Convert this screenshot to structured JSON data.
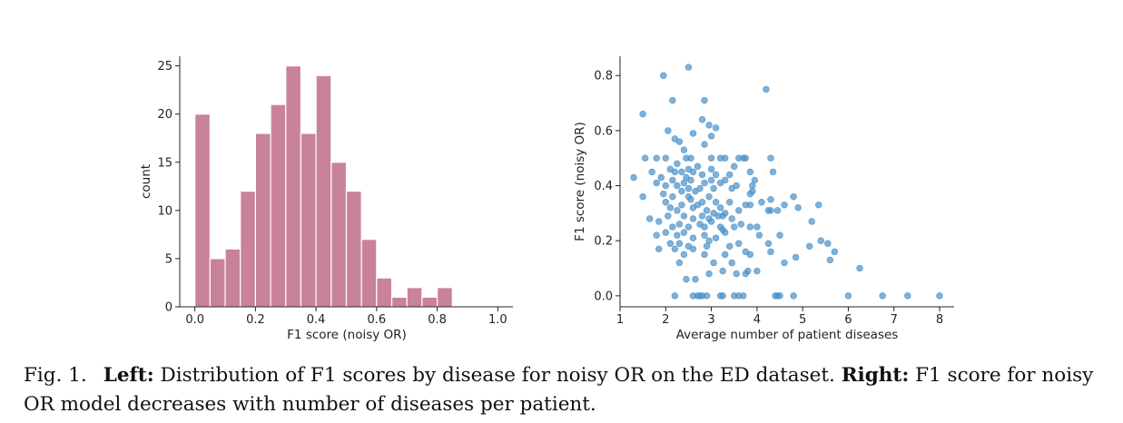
{
  "chart_data": [
    {
      "type": "bar",
      "chart_kind": "histogram",
      "xlabel": "F1 score (noisy OR)",
      "ylabel": "count",
      "xlim": [
        -0.05,
        1.05
      ],
      "ylim": [
        0,
        26
      ],
      "xticks": [
        "0.0",
        "0.2",
        "0.4",
        "0.6",
        "0.8",
        "1.0"
      ],
      "yticks": [
        "0",
        "5",
        "10",
        "15",
        "20",
        "25"
      ],
      "bin_edges": [
        0.0,
        0.05,
        0.1,
        0.15,
        0.2,
        0.25,
        0.3,
        0.35,
        0.4,
        0.45,
        0.5,
        0.55,
        0.6,
        0.65,
        0.7,
        0.75,
        0.8,
        0.85
      ],
      "values": [
        20,
        5,
        6,
        12,
        18,
        21,
        25,
        18,
        24,
        15,
        12,
        7,
        3,
        1,
        2,
        1,
        2
      ],
      "color": "#c8829a",
      "edge_color": "#ffffff",
      "grid": false
    },
    {
      "type": "scatter",
      "xlabel": "Average number of patient diseases",
      "ylabel": "F1 score (noisy OR)",
      "xlim": [
        1,
        8
      ],
      "ylim": [
        -0.04,
        0.87
      ],
      "xticks": [
        "1",
        "2",
        "3",
        "4",
        "5",
        "6",
        "7",
        "8"
      ],
      "yticks": [
        "0.0",
        "0.2",
        "0.4",
        "0.6",
        "0.8"
      ],
      "color": "#4a90c8",
      "grid": false,
      "points": [
        [
          2.5,
          0.83
        ],
        [
          1.95,
          0.8
        ],
        [
          4.2,
          0.75
        ],
        [
          2.15,
          0.71
        ],
        [
          2.85,
          0.71
        ],
        [
          1.5,
          0.66
        ],
        [
          2.8,
          0.64
        ],
        [
          2.95,
          0.62
        ],
        [
          3.1,
          0.61
        ],
        [
          2.05,
          0.6
        ],
        [
          2.6,
          0.59
        ],
        [
          3.0,
          0.58
        ],
        [
          2.2,
          0.57
        ],
        [
          2.3,
          0.56
        ],
        [
          2.85,
          0.55
        ],
        [
          2.4,
          0.53
        ],
        [
          1.8,
          0.5
        ],
        [
          2.0,
          0.5
        ],
        [
          2.45,
          0.5
        ],
        [
          2.55,
          0.5
        ],
        [
          3.0,
          0.5
        ],
        [
          3.2,
          0.5
        ],
        [
          3.3,
          0.5
        ],
        [
          3.6,
          0.5
        ],
        [
          3.75,
          0.5
        ],
        [
          3.7,
          0.5
        ],
        [
          4.3,
          0.5
        ],
        [
          1.55,
          0.5
        ],
        [
          2.25,
          0.48
        ],
        [
          2.7,
          0.47
        ],
        [
          3.5,
          0.47
        ],
        [
          2.1,
          0.46
        ],
        [
          2.5,
          0.46
        ],
        [
          3.0,
          0.46
        ],
        [
          1.7,
          0.45
        ],
        [
          2.2,
          0.45
        ],
        [
          2.35,
          0.45
        ],
        [
          2.6,
          0.45
        ],
        [
          3.85,
          0.45
        ],
        [
          4.35,
          0.45
        ],
        [
          2.8,
          0.44
        ],
        [
          3.1,
          0.44
        ],
        [
          3.4,
          0.44
        ],
        [
          1.9,
          0.43
        ],
        [
          2.45,
          0.43
        ],
        [
          1.3,
          0.43
        ],
        [
          2.15,
          0.42
        ],
        [
          2.55,
          0.42
        ],
        [
          3.0,
          0.42
        ],
        [
          3.3,
          0.42
        ],
        [
          3.95,
          0.42
        ],
        [
          1.8,
          0.41
        ],
        [
          2.4,
          0.41
        ],
        [
          2.85,
          0.41
        ],
        [
          3.2,
          0.41
        ],
        [
          2.0,
          0.4
        ],
        [
          2.25,
          0.4
        ],
        [
          3.55,
          0.4
        ],
        [
          3.9,
          0.4
        ],
        [
          2.5,
          0.39
        ],
        [
          2.75,
          0.39
        ],
        [
          3.05,
          0.39
        ],
        [
          3.45,
          0.39
        ],
        [
          3.9,
          0.38
        ],
        [
          2.35,
          0.38
        ],
        [
          2.65,
          0.38
        ],
        [
          1.95,
          0.37
        ],
        [
          3.85,
          0.37
        ],
        [
          2.15,
          0.36
        ],
        [
          2.5,
          0.36
        ],
        [
          2.95,
          0.36
        ],
        [
          1.5,
          0.36
        ],
        [
          4.8,
          0.36
        ],
        [
          2.55,
          0.35
        ],
        [
          4.3,
          0.35
        ],
        [
          2.0,
          0.34
        ],
        [
          2.8,
          0.34
        ],
        [
          3.1,
          0.34
        ],
        [
          3.4,
          0.34
        ],
        [
          4.1,
          0.34
        ],
        [
          2.35,
          0.33
        ],
        [
          2.7,
          0.33
        ],
        [
          3.75,
          0.33
        ],
        [
          3.85,
          0.33
        ],
        [
          4.6,
          0.33
        ],
        [
          5.35,
          0.33
        ],
        [
          2.1,
          0.32
        ],
        [
          2.6,
          0.32
        ],
        [
          3.2,
          0.32
        ],
        [
          4.9,
          0.32
        ],
        [
          3.6,
          0.31
        ],
        [
          2.25,
          0.31
        ],
        [
          2.9,
          0.31
        ],
        [
          4.25,
          0.31
        ],
        [
          4.45,
          0.31
        ],
        [
          4.3,
          0.31
        ],
        [
          3.05,
          0.3
        ],
        [
          3.3,
          0.3
        ],
        [
          2.4,
          0.29
        ],
        [
          2.8,
          0.29
        ],
        [
          3.15,
          0.29
        ],
        [
          2.05,
          0.29
        ],
        [
          3.25,
          0.29
        ],
        [
          2.6,
          0.28
        ],
        [
          2.95,
          0.28
        ],
        [
          1.65,
          0.28
        ],
        [
          3.45,
          0.28
        ],
        [
          5.2,
          0.27
        ],
        [
          1.85,
          0.27
        ],
        [
          3.0,
          0.27
        ],
        [
          2.3,
          0.26
        ],
        [
          2.75,
          0.26
        ],
        [
          3.65,
          0.26
        ],
        [
          2.15,
          0.25
        ],
        [
          2.5,
          0.25
        ],
        [
          2.85,
          0.25
        ],
        [
          3.2,
          0.25
        ],
        [
          3.5,
          0.25
        ],
        [
          3.85,
          0.25
        ],
        [
          4.0,
          0.25
        ],
        [
          3.25,
          0.24
        ],
        [
          2.0,
          0.23
        ],
        [
          2.4,
          0.23
        ],
        [
          3.3,
          0.23
        ],
        [
          1.8,
          0.22
        ],
        [
          2.25,
          0.22
        ],
        [
          2.85,
          0.22
        ],
        [
          4.05,
          0.22
        ],
        [
          4.5,
          0.22
        ],
        [
          2.6,
          0.21
        ],
        [
          3.1,
          0.21
        ],
        [
          2.95,
          0.2
        ],
        [
          5.4,
          0.2
        ],
        [
          2.1,
          0.19
        ],
        [
          2.3,
          0.19
        ],
        [
          3.6,
          0.19
        ],
        [
          4.25,
          0.19
        ],
        [
          5.55,
          0.19
        ],
        [
          5.15,
          0.18
        ],
        [
          2.5,
          0.18
        ],
        [
          2.9,
          0.18
        ],
        [
          3.4,
          0.18
        ],
        [
          1.85,
          0.17
        ],
        [
          2.2,
          0.17
        ],
        [
          2.6,
          0.17
        ],
        [
          3.75,
          0.16
        ],
        [
          4.3,
          0.16
        ],
        [
          5.7,
          0.16
        ],
        [
          2.4,
          0.15
        ],
        [
          2.85,
          0.15
        ],
        [
          3.3,
          0.15
        ],
        [
          3.85,
          0.15
        ],
        [
          4.85,
          0.14
        ],
        [
          5.6,
          0.13
        ],
        [
          3.05,
          0.12
        ],
        [
          3.45,
          0.12
        ],
        [
          2.3,
          0.12
        ],
        [
          4.6,
          0.12
        ],
        [
          6.25,
          0.1
        ],
        [
          3.8,
          0.09
        ],
        [
          3.25,
          0.09
        ],
        [
          4.0,
          0.09
        ],
        [
          2.95,
          0.08
        ],
        [
          3.55,
          0.08
        ],
        [
          2.45,
          0.06
        ],
        [
          2.65,
          0.06
        ],
        [
          3.75,
          0.08
        ],
        [
          2.6,
          0.0
        ],
        [
          2.7,
          0.0
        ],
        [
          2.75,
          0.0
        ],
        [
          2.8,
          0.0
        ],
        [
          2.2,
          0.0
        ],
        [
          2.9,
          0.0
        ],
        [
          3.2,
          0.0
        ],
        [
          3.25,
          0.0
        ],
        [
          3.5,
          0.0
        ],
        [
          3.6,
          0.0
        ],
        [
          3.7,
          0.0
        ],
        [
          4.4,
          0.0
        ],
        [
          4.45,
          0.0
        ],
        [
          4.5,
          0.0
        ],
        [
          4.8,
          0.0
        ],
        [
          6.0,
          0.0
        ],
        [
          6.75,
          0.0
        ],
        [
          7.3,
          0.0
        ],
        [
          8.0,
          0.0
        ]
      ]
    }
  ],
  "caption": {
    "fig_num": "Fig. 1.",
    "left_bold": "Left:",
    "left_text": " Distribution of F1 scores by disease for noisy OR on the ED dataset. ",
    "right_bold": "Right:",
    "right_text": " F1 score for noisy OR model decreases with number of diseases per patient."
  }
}
